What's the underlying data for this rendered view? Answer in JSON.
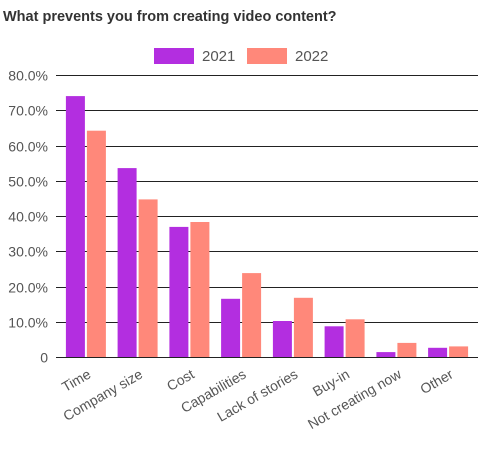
{
  "title": "What prevents you from creating video content?",
  "chart_data": {
    "type": "bar",
    "categories": [
      "Time",
      "Company size",
      "Cost",
      "Capabilities",
      "Lack of stories",
      "Buy-in",
      "Not creating now",
      "Other"
    ],
    "series": [
      {
        "name": "2021",
        "color": "#b32ee0",
        "values": [
          74.0,
          53.6,
          36.9,
          16.5,
          10.2,
          8.7,
          1.4,
          2.6
        ]
      },
      {
        "name": "2022",
        "color": "#ff887a",
        "values": [
          64.2,
          44.7,
          38.3,
          23.8,
          16.8,
          10.7,
          4.0,
          3.0
        ]
      }
    ],
    "ylim": [
      0,
      80
    ],
    "ytick_values": [
      0,
      10,
      20,
      30,
      40,
      50,
      60,
      70,
      80
    ],
    "ytick_labels": [
      "0",
      "10.0%",
      "20.0%",
      "30.0%",
      "40.0%",
      "50.0%",
      "60.0%",
      "70.0%",
      "80.0%"
    ],
    "grid": true,
    "legend_position": "top-center"
  }
}
